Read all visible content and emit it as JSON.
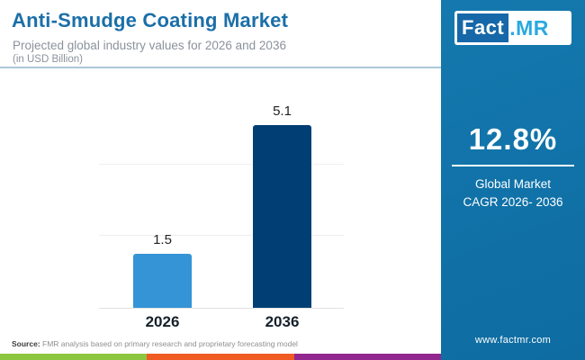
{
  "header": {
    "title": "Anti-Smudge Coating Market",
    "subtitle": "Projected global industry values for 2026 and 2036",
    "unit_note": "(in USD Billion)"
  },
  "chart_data": {
    "type": "bar",
    "categories": [
      "2026",
      "2036"
    ],
    "values": [
      1.5,
      5.1
    ],
    "value_labels": [
      "1.5",
      "5.1"
    ],
    "title": "Anti-Smudge Coating Market",
    "xlabel": "",
    "ylabel": "",
    "ylim": [
      0,
      6
    ],
    "gridline_values": [
      2,
      4
    ],
    "bar_colors": [
      "#3494D6",
      "#003E73"
    ],
    "grid": true,
    "legend": false
  },
  "side_panel": {
    "logo": {
      "fact": "Fact",
      "mr": ".MR"
    },
    "cagr_value": "12.8%",
    "cagr_label_line1": "Global Market",
    "cagr_label_line2": "CAGR 2026- 2036",
    "website": "www.factmr.com",
    "bg_color": "#1173A9"
  },
  "footer": {
    "source_label": "Source:",
    "source_text": " FMR analysis based on primary research and proprietary forecasting model",
    "strip_colors": [
      "#8DC63F",
      "#F05A23",
      "#92278F"
    ]
  }
}
